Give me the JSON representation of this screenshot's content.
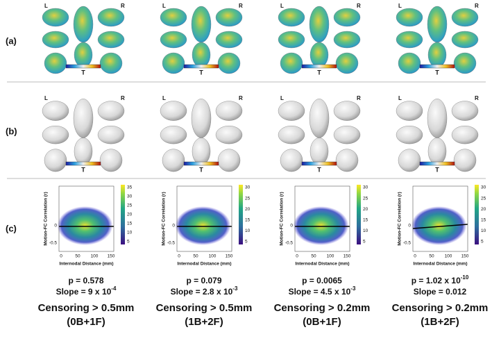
{
  "row_labels": [
    "(a)",
    "(b)",
    "(c)"
  ],
  "panels": [
    {
      "maps": [
        {
          "left": "L",
          "right": "R",
          "bar": "T"
        },
        {
          "left": "L",
          "right": "R",
          "bar": "T"
        }
      ],
      "scatter": {
        "y_label": "Motion-FC Correlation (r)",
        "x_label": "Internodal Distance (mm)",
        "x_ticks": [
          "0",
          "50",
          "100",
          "150"
        ],
        "y_ticks": [
          "0",
          "-0.5"
        ],
        "colorbar_ticks": [
          "35",
          "30",
          "25",
          "20",
          "15",
          "10",
          "5"
        ]
      },
      "p": {
        "text": "p = 0.578"
      },
      "slope": {
        "text": "Slope = 9 x 10",
        "exp": "-4"
      },
      "title": "Censoring > 0.5mm",
      "subtitle": "(0B+1F)"
    },
    {
      "maps": [
        {
          "left": "L",
          "right": "R",
          "bar": "T"
        },
        {
          "left": "L",
          "right": "R",
          "bar": "T"
        }
      ],
      "scatter": {
        "y_label": "Motion-FC Correlation (r)",
        "x_label": "Internodal Distance (mm)",
        "x_ticks": [
          "0",
          "50",
          "100",
          "150"
        ],
        "y_ticks": [
          "0",
          "-0.5"
        ],
        "colorbar_ticks": [
          "30",
          "25",
          "20",
          "15",
          "10",
          "5"
        ]
      },
      "p": {
        "text": "p = 0.079"
      },
      "slope": {
        "text": "Slope = 2.8 x 10",
        "exp": "-3"
      },
      "title": "Censoring > 0.5mm",
      "subtitle": "(1B+2F)"
    },
    {
      "maps": [
        {
          "left": "L",
          "right": "R",
          "bar": "T"
        },
        {
          "left": "L",
          "right": "R",
          "bar": "T"
        }
      ],
      "scatter": {
        "y_label": "Motion-FC Correlation (r)",
        "x_label": "Internodal Distance (mm)",
        "x_ticks": [
          "0",
          "50",
          "100",
          "150"
        ],
        "y_ticks": [
          "0",
          "-0.5"
        ],
        "colorbar_ticks": [
          "30",
          "25",
          "20",
          "15",
          "10",
          "5"
        ]
      },
      "p": {
        "text": "p = 0.0065"
      },
      "slope": {
        "text": "Slope = 4.5 x 10",
        "exp": "-3"
      },
      "title": "Censoring > 0.2mm",
      "subtitle": "(0B+1F)"
    },
    {
      "maps": [
        {
          "left": "L",
          "right": "R",
          "bar": "T"
        },
        {
          "left": "L",
          "right": "R",
          "bar": "T"
        }
      ],
      "scatter": {
        "y_label": "Motion-FC Correlation (r)",
        "x_label": "Internodal Distance (mm)",
        "x_ticks": [
          "0",
          "50",
          "100",
          "150"
        ],
        "y_ticks": [
          "0",
          "-0.5"
        ],
        "colorbar_ticks": [
          "30",
          "25",
          "20",
          "15",
          "10",
          "5"
        ]
      },
      "p": {
        "text": "p = 1.02 x 10",
        "exp": "-10"
      },
      "slope": {
        "text": "Slope = 0.012"
      },
      "title": "Censoring > 0.2mm",
      "subtitle": "(1B+2F)"
    }
  ]
}
